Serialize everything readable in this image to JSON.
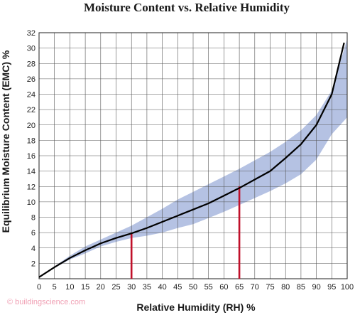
{
  "chart_data": {
    "type": "line",
    "title": "Moisture Content vs. Relative Humidity",
    "xlabel": "Relative Humidity (RH) %",
    "ylabel": "Equilibrium Moisture Content (EMC) %",
    "xlim": [
      0,
      100
    ],
    "ylim": [
      0,
      32
    ],
    "x_ticks": [
      0,
      5,
      10,
      15,
      20,
      25,
      30,
      35,
      40,
      45,
      50,
      55,
      60,
      65,
      70,
      75,
      80,
      85,
      90,
      95,
      100
    ],
    "y_ticks": [
      2,
      4,
      6,
      8,
      10,
      12,
      14,
      16,
      18,
      20,
      22,
      24,
      26,
      28,
      30,
      32
    ],
    "grid": true,
    "series": [
      {
        "x": [
          0,
          5,
          10,
          15,
          20,
          25,
          30,
          35,
          40,
          45,
          50,
          55,
          60,
          65,
          70,
          75,
          80,
          85,
          90,
          95,
          99
        ],
        "values": [
          0.2,
          1.5,
          2.7,
          3.7,
          4.6,
          5.3,
          5.9,
          6.6,
          7.4,
          8.2,
          9.0,
          9.8,
          10.8,
          11.8,
          12.9,
          14.0,
          15.7,
          17.5,
          20.0,
          24.0,
          30.7
        ],
        "color": "#000000"
      }
    ],
    "band": {
      "x": [
        5,
        10,
        15,
        20,
        25,
        30,
        35,
        40,
        45,
        50,
        55,
        60,
        65,
        70,
        75,
        80,
        85,
        90,
        95,
        100
      ],
      "upper": [
        1.6,
        3.0,
        4.2,
        5.1,
        6.0,
        6.9,
        8.0,
        9.1,
        10.3,
        11.3,
        12.3,
        13.3,
        14.3,
        15.4,
        16.5,
        17.8,
        19.3,
        21.3,
        24.5,
        31.2
      ],
      "lower": [
        1.4,
        2.5,
        3.3,
        4.2,
        4.8,
        5.3,
        5.6,
        6.0,
        6.6,
        7.1,
        7.9,
        8.7,
        9.6,
        10.5,
        11.4,
        12.4,
        13.6,
        15.5,
        18.8,
        21.0
      ],
      "color": "#b5c2e3"
    },
    "markers": [
      {
        "x": 30,
        "y": 6,
        "color": "#c0102a"
      },
      {
        "x": 65,
        "y": 12,
        "color": "#c0102a"
      }
    ]
  },
  "credit": "© buildingscience.com"
}
